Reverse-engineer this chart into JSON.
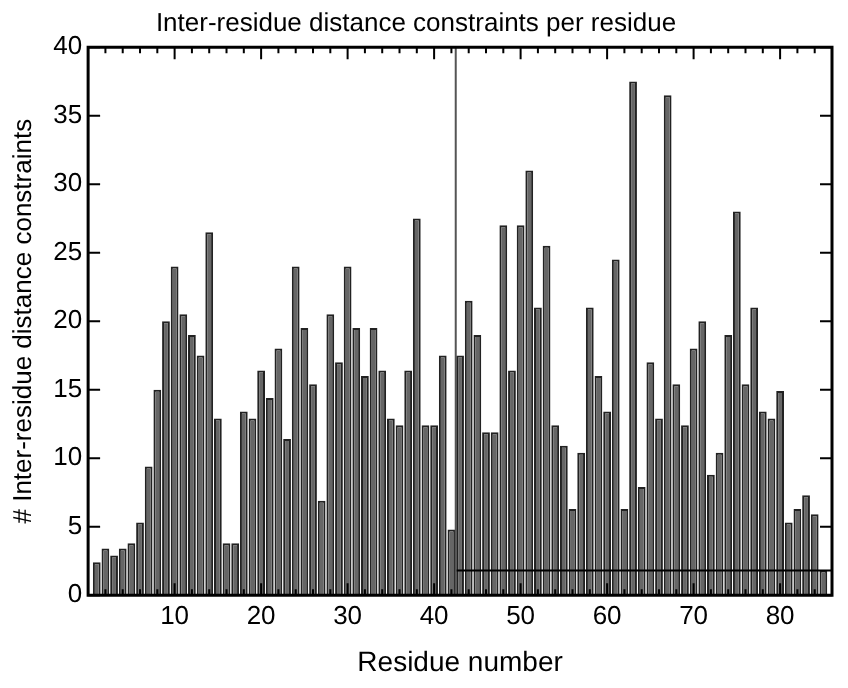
{
  "chart_data": {
    "type": "bar",
    "title": "Inter-residue distance constraints per residue",
    "xlabel": "Residue number",
    "ylabel": "# Inter-residue distance constraints",
    "x": [
      1,
      2,
      3,
      4,
      5,
      6,
      7,
      8,
      9,
      10,
      11,
      12,
      13,
      14,
      15,
      16,
      17,
      18,
      19,
      20,
      21,
      22,
      23,
      24,
      25,
      26,
      27,
      28,
      29,
      30,
      31,
      32,
      33,
      34,
      35,
      36,
      37,
      38,
      39,
      40,
      41,
      42,
      43,
      44,
      45,
      46,
      47,
      48,
      49,
      50,
      51,
      52,
      53,
      54,
      55,
      56,
      57,
      58,
      59,
      60,
      61,
      62,
      63,
      64,
      65,
      66,
      67,
      68,
      69,
      70,
      71,
      72,
      73,
      74,
      75,
      76,
      77,
      78,
      79,
      80,
      81,
      82,
      83,
      84,
      85
    ],
    "series": [
      {
        "color": "#666666",
        "values": [
          2.4,
          3.4,
          2.9,
          3.4,
          3.8,
          5.3,
          9.4,
          15,
          20,
          24,
          20.5,
          19,
          17.5,
          26.5,
          12.9,
          3.8,
          3.8,
          13.4,
          12.9,
          16.4,
          14.4,
          18,
          11.4,
          24,
          19.5,
          15.4,
          6.9,
          20.5,
          17,
          24,
          19.5,
          16,
          19.5,
          16.4,
          12.9,
          12.4,
          16.4,
          27.5,
          12.4,
          12.4,
          17.5,
          4.8,
          17.5,
          21.5,
          19,
          11.9,
          11.9,
          27,
          16.4,
          27,
          31,
          21,
          25.5,
          12.4,
          10.9,
          6.3,
          10.4,
          21,
          16,
          13.4,
          24.5,
          6.3,
          37.5,
          7.9,
          17,
          12.9,
          36.5,
          15.4,
          12.4,
          18,
          20,
          8.8,
          10.4,
          19,
          28,
          15.4,
          21,
          13.4,
          12.9,
          14.9,
          5.3,
          6.3,
          7.3,
          5.9,
          1.8
        ]
      },
      {
        "type": "line",
        "color": "#000000",
        "x": [
          42.5,
          86
        ],
        "values": [
          1.8,
          1.8
        ]
      }
    ],
    "ref_lines": [
      {
        "axis": "x",
        "value": 42.5,
        "color": "#555555"
      }
    ],
    "xlim": [
      0,
      86
    ],
    "xticks": [
      {
        "value": 2,
        "label": null
      },
      {
        "value": 4,
        "label": null
      },
      {
        "value": 6,
        "label": null
      },
      {
        "value": 8,
        "label": null
      },
      10,
      {
        "value": 12,
        "label": null
      },
      {
        "value": 14,
        "label": null
      },
      {
        "value": 16,
        "label": null
      },
      {
        "value": 18,
        "label": null
      },
      20,
      {
        "value": 22,
        "label": null
      },
      {
        "value": 24,
        "label": null
      },
      {
        "value": 26,
        "label": null
      },
      {
        "value": 28,
        "label": null
      },
      30,
      {
        "value": 32,
        "label": null
      },
      {
        "value": 34,
        "label": null
      },
      {
        "value": 36,
        "label": null
      },
      {
        "value": 38,
        "label": null
      },
      40,
      {
        "value": 42,
        "label": null
      },
      {
        "value": 44,
        "label": null
      },
      {
        "value": 46,
        "label": null
      },
      {
        "value": 48,
        "label": null
      },
      50,
      {
        "value": 52,
        "label": null
      },
      {
        "value": 54,
        "label": null
      },
      {
        "value": 56,
        "label": null
      },
      {
        "value": 58,
        "label": null
      },
      60,
      {
        "value": 62,
        "label": null
      },
      {
        "value": 64,
        "label": null
      },
      {
        "value": 66,
        "label": null
      },
      {
        "value": 68,
        "label": null
      },
      70,
      {
        "value": 72,
        "label": null
      },
      {
        "value": 74,
        "label": null
      },
      {
        "value": 76,
        "label": null
      },
      {
        "value": 78,
        "label": null
      },
      80,
      {
        "value": 82,
        "label": null
      },
      {
        "value": 84,
        "label": null
      }
    ],
    "ylim": [
      0,
      40
    ],
    "yticks": [
      0,
      5,
      10,
      15,
      20,
      25,
      30,
      35,
      40
    ],
    "grid": false,
    "legend": false
  }
}
